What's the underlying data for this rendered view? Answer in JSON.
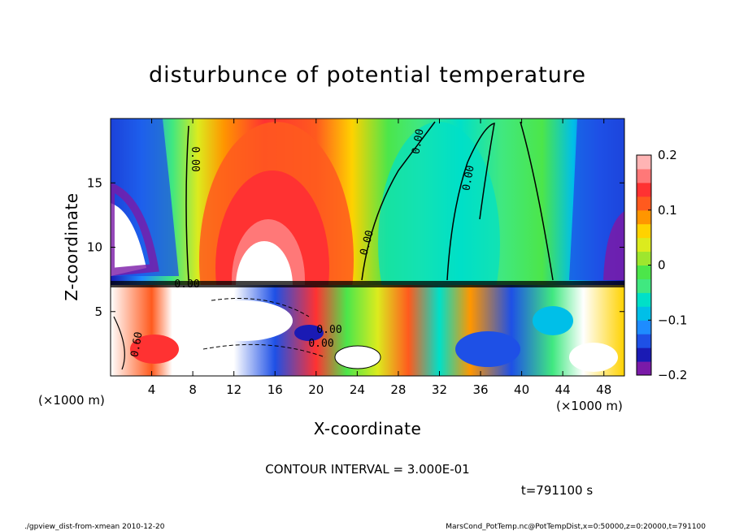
{
  "chart_data": {
    "type": "heatmap",
    "title": "disturbunce of potential temperature",
    "xlabel": "X-coordinate",
    "ylabel": "Z-coordinate",
    "x_unit": "(×1000 m)",
    "y_unit": "(×1000 m)",
    "xlim": [
      0,
      50
    ],
    "ylim": [
      0,
      20
    ],
    "x_ticks": [
      4,
      8,
      12,
      16,
      20,
      24,
      28,
      32,
      36,
      40,
      44,
      48
    ],
    "y_ticks": [
      5,
      10,
      15
    ],
    "colorbar": {
      "ticks": [
        {
          "value": 0.2,
          "label": "0.2"
        },
        {
          "value": 0.1,
          "label": "0.1"
        },
        {
          "value": 0,
          "label": "0"
        },
        {
          "value": -0.1,
          "label": "−0.1"
        },
        {
          "value": -0.2,
          "label": "−0.2"
        }
      ],
      "range": [
        -0.2,
        0.2
      ],
      "colors": [
        "#7a1aa8",
        "#1a1ab4",
        "#1e50e6",
        "#1e8cff",
        "#00bfe8",
        "#00e0c8",
        "#40e880",
        "#4ce64a",
        "#9ee62e",
        "#dceb1e",
        "#ffd200",
        "#ff9600",
        "#ff5a1e",
        "#ff3232",
        "#ff7878",
        "#ffb4b4"
      ]
    },
    "contour_interval": "CONTOUR INTERVAL = 3.000E-01",
    "contour_labels": [
      "0.00",
      "0.00",
      "0.00",
      "0.00",
      "0.00",
      "0.00",
      "0.00",
      "0.60"
    ],
    "time_label": "t=791100 s"
  },
  "footer": {
    "left": "./gpview_dist-from-xmean  2010-12-20",
    "right": "MarsCond_PotTemp.nc@PotTempDist,x=0:50000,z=0:20000,t=791100"
  }
}
